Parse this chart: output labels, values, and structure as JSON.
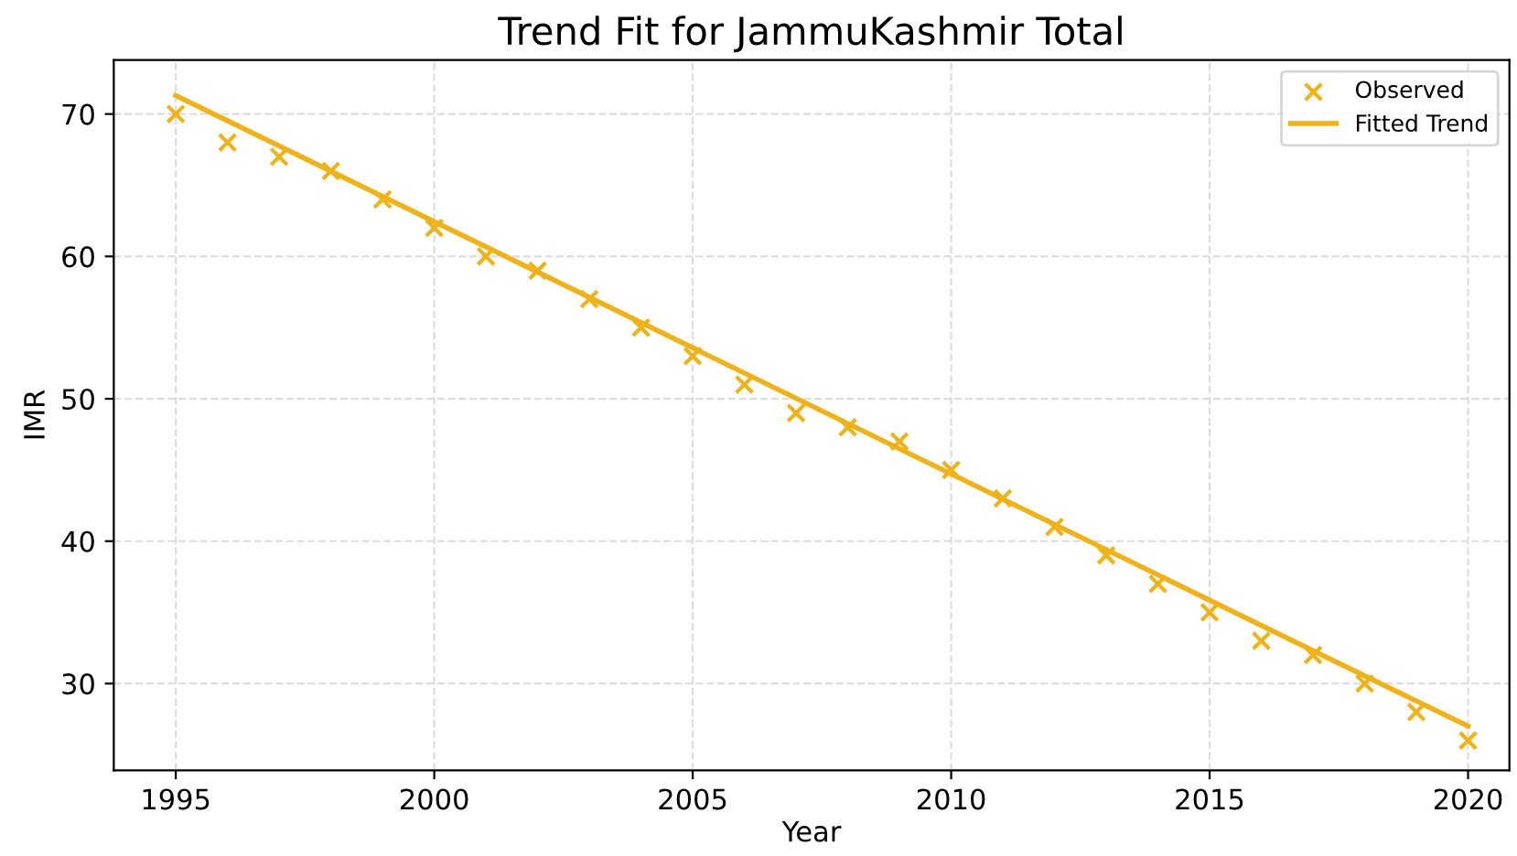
{
  "chart_data": {
    "type": "scatter",
    "title": "Trend Fit for JammuKashmir Total",
    "xlabel": "Year",
    "ylabel": "IMR",
    "x": [
      1995,
      1996,
      1997,
      1998,
      1999,
      2000,
      2001,
      2002,
      2003,
      2004,
      2005,
      2006,
      2007,
      2008,
      2009,
      2010,
      2011,
      2012,
      2013,
      2014,
      2015,
      2016,
      2017,
      2018,
      2019,
      2020
    ],
    "series": [
      {
        "name": "Observed",
        "marker": "cross",
        "color": "#eeb21a",
        "values": [
          70,
          68,
          67,
          66,
          64,
          62,
          60,
          59,
          57,
          55,
          53,
          51,
          49,
          48,
          47,
          45,
          43,
          41,
          39,
          37,
          35,
          33,
          32,
          30,
          28,
          26
        ]
      },
      {
        "name": "Fitted Trend",
        "type": "line",
        "marker": "none",
        "line_style": "solid",
        "color": "#eeb21a",
        "x": [
          1995,
          2020
        ],
        "values": [
          71.3,
          27.0
        ]
      }
    ],
    "xlim": [
      1993.8,
      2020.8
    ],
    "xticks": [
      1995,
      2000,
      2005,
      2010,
      2015,
      2020
    ],
    "ylim": [
      23.9,
      73.8
    ],
    "yticks": [
      30,
      40,
      50,
      60,
      70
    ],
    "grid": true,
    "legend": "top right"
  }
}
